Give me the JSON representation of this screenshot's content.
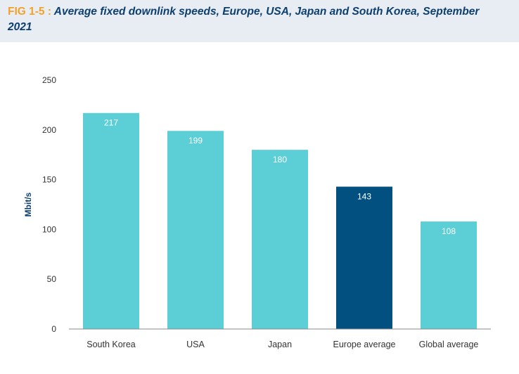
{
  "header": {
    "fig_label": "FIG 1-5 :",
    "title": "Average fixed downlink speeds, Europe, USA, Japan and South Korea, September 2021"
  },
  "colors": {
    "bar_default": "#5ccfd6",
    "bar_highlight": "#01507f",
    "title_fig": "#f3a12c",
    "title_text": "#0d3f6e",
    "axis_label": "#0d3f6e",
    "header_bg": "#e8edf3"
  },
  "chart_data": {
    "type": "bar",
    "title": "Average fixed downlink speeds, Europe, USA, Japan and South Korea, September 2021",
    "xlabel": "",
    "ylabel": "Mbit/s",
    "ylim": [
      0,
      250
    ],
    "yticks": [
      0,
      50,
      100,
      150,
      200,
      250
    ],
    "grid": false,
    "categories": [
      "South Korea",
      "USA",
      "Japan",
      "Europe average",
      "Global average"
    ],
    "values": [
      217,
      199,
      180,
      143,
      108
    ],
    "highlight": [
      "Europe average"
    ]
  }
}
